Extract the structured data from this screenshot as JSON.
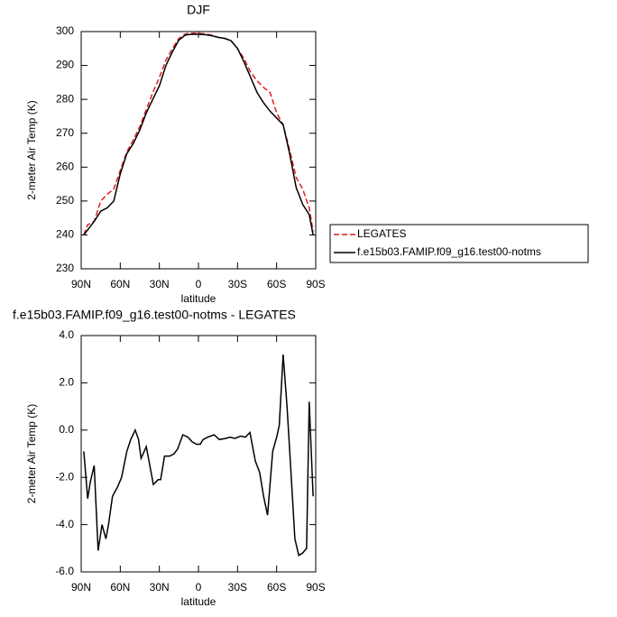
{
  "chart_data": [
    {
      "type": "line",
      "title": "DJF",
      "xlabel": "latitude",
      "ylabel": "2-meter Air Temp (K)",
      "x": [
        88,
        85,
        80,
        75,
        70,
        65,
        60,
        55,
        50,
        45,
        40,
        35,
        30,
        25,
        20,
        15,
        10,
        5,
        0,
        -5,
        -10,
        -15,
        -20,
        -25,
        -30,
        -35,
        -40,
        -45,
        -50,
        -55,
        -60,
        -65,
        -70,
        -75,
        -80,
        -85,
        -88
      ],
      "series": [
        {
          "name": "LEGATES",
          "color": "#e41a1c",
          "dash": true,
          "values": [
            240,
            243,
            244,
            250,
            252,
            253.5,
            259,
            264.5,
            268,
            272,
            277,
            282,
            286.5,
            291.5,
            295,
            298,
            299.3,
            299.5,
            299.5,
            299.3,
            299,
            298.3,
            298,
            297.3,
            295,
            292,
            288,
            285.5,
            283.5,
            282,
            276,
            272.5,
            265,
            257,
            253.5,
            248,
            241
          ]
        },
        {
          "name": "f.e15b03.FAMIP.f09_g16.test00-notms",
          "color": "#000000",
          "dash": false,
          "values": [
            240,
            241.5,
            244,
            247,
            248,
            250,
            258,
            264,
            267,
            271,
            276,
            280,
            284,
            290,
            294,
            297.5,
            299,
            299.2,
            299.2,
            299.1,
            298.8,
            298.3,
            298,
            297.3,
            295,
            291,
            286.5,
            282,
            279,
            276.5,
            274.5,
            272.5,
            264,
            254,
            249,
            246,
            240
          ]
        }
      ],
      "xlim": [
        90,
        -90
      ],
      "xticks": [
        {
          "value": 90,
          "label": "90N"
        },
        {
          "value": 60,
          "label": "60N"
        },
        {
          "value": 30,
          "label": "30N"
        },
        0,
        {
          "value": -30,
          "label": "30S"
        },
        {
          "value": -60,
          "label": "60S"
        },
        {
          "value": -90,
          "label": "90S"
        }
      ],
      "ylim": [
        230,
        300
      ],
      "yticks": [
        230,
        240,
        250,
        260,
        270,
        280,
        290,
        300
      ],
      "legend": "right"
    },
    {
      "type": "line",
      "title": "f.e15b03.FAMIP.f09_g16.test00-notms - LEGATES",
      "xlabel": "latitude",
      "ylabel": "2-meter Air Temp (K)",
      "x": [
        88,
        85,
        83,
        80,
        77,
        74,
        71,
        69,
        66,
        62,
        59,
        55,
        52,
        48.5,
        46,
        44,
        40,
        34.6,
        31,
        29,
        26,
        22,
        18.7,
        16,
        12,
        8,
        4.8,
        1.4,
        -1.4,
        -3.5,
        -7,
        -12,
        -16,
        -21,
        -24,
        -28,
        -32.6,
        -36,
        -39.5,
        -43.6,
        -47,
        -50,
        -53,
        -57,
        -60,
        -62,
        -65,
        -68,
        -71,
        -74,
        -77,
        -80,
        -83,
        -85,
        -88
      ],
      "series": [
        {
          "color": "#000000",
          "dash": false,
          "values": [
            -0.9,
            -2.9,
            -2.2,
            -1.5,
            -5.1,
            -4.0,
            -4.6,
            -4.0,
            -2.8,
            -2.4,
            -2.0,
            -0.9,
            -0.4,
            0.0,
            -0.4,
            -1.2,
            -0.7,
            -2.3,
            -2.1,
            -2.1,
            -1.1,
            -1.1,
            -1.0,
            -0.8,
            -0.2,
            -0.3,
            -0.5,
            -0.6,
            -0.6,
            -0.4,
            -0.3,
            -0.2,
            -0.4,
            -0.35,
            -0.3,
            -0.35,
            -0.25,
            -0.3,
            -0.1,
            -1.3,
            -1.8,
            -2.8,
            -3.6,
            -0.9,
            -0.3,
            0.2,
            3.2,
            1.0,
            -1.8,
            -4.6,
            -5.3,
            -5.2,
            -5.0,
            1.2,
            -2.8
          ]
        }
      ],
      "xlim": [
        90,
        -90
      ],
      "xticks": [
        {
          "value": 90,
          "label": "90N"
        },
        {
          "value": 60,
          "label": "60N"
        },
        {
          "value": 30,
          "label": "30N"
        },
        0,
        {
          "value": -30,
          "label": "30S"
        },
        {
          "value": -60,
          "label": "60S"
        },
        {
          "value": -90,
          "label": "90S"
        }
      ],
      "ylim": [
        -6,
        4
      ],
      "yticks": [
        {
          "value": -6,
          "label": "-6.0"
        },
        {
          "value": -4,
          "label": "-4.0"
        },
        {
          "value": -2,
          "label": "-2.0"
        },
        {
          "value": 0,
          "label": "0.0"
        },
        {
          "value": 2,
          "label": "2.0"
        },
        {
          "value": 4,
          "label": "4.0"
        }
      ]
    }
  ]
}
